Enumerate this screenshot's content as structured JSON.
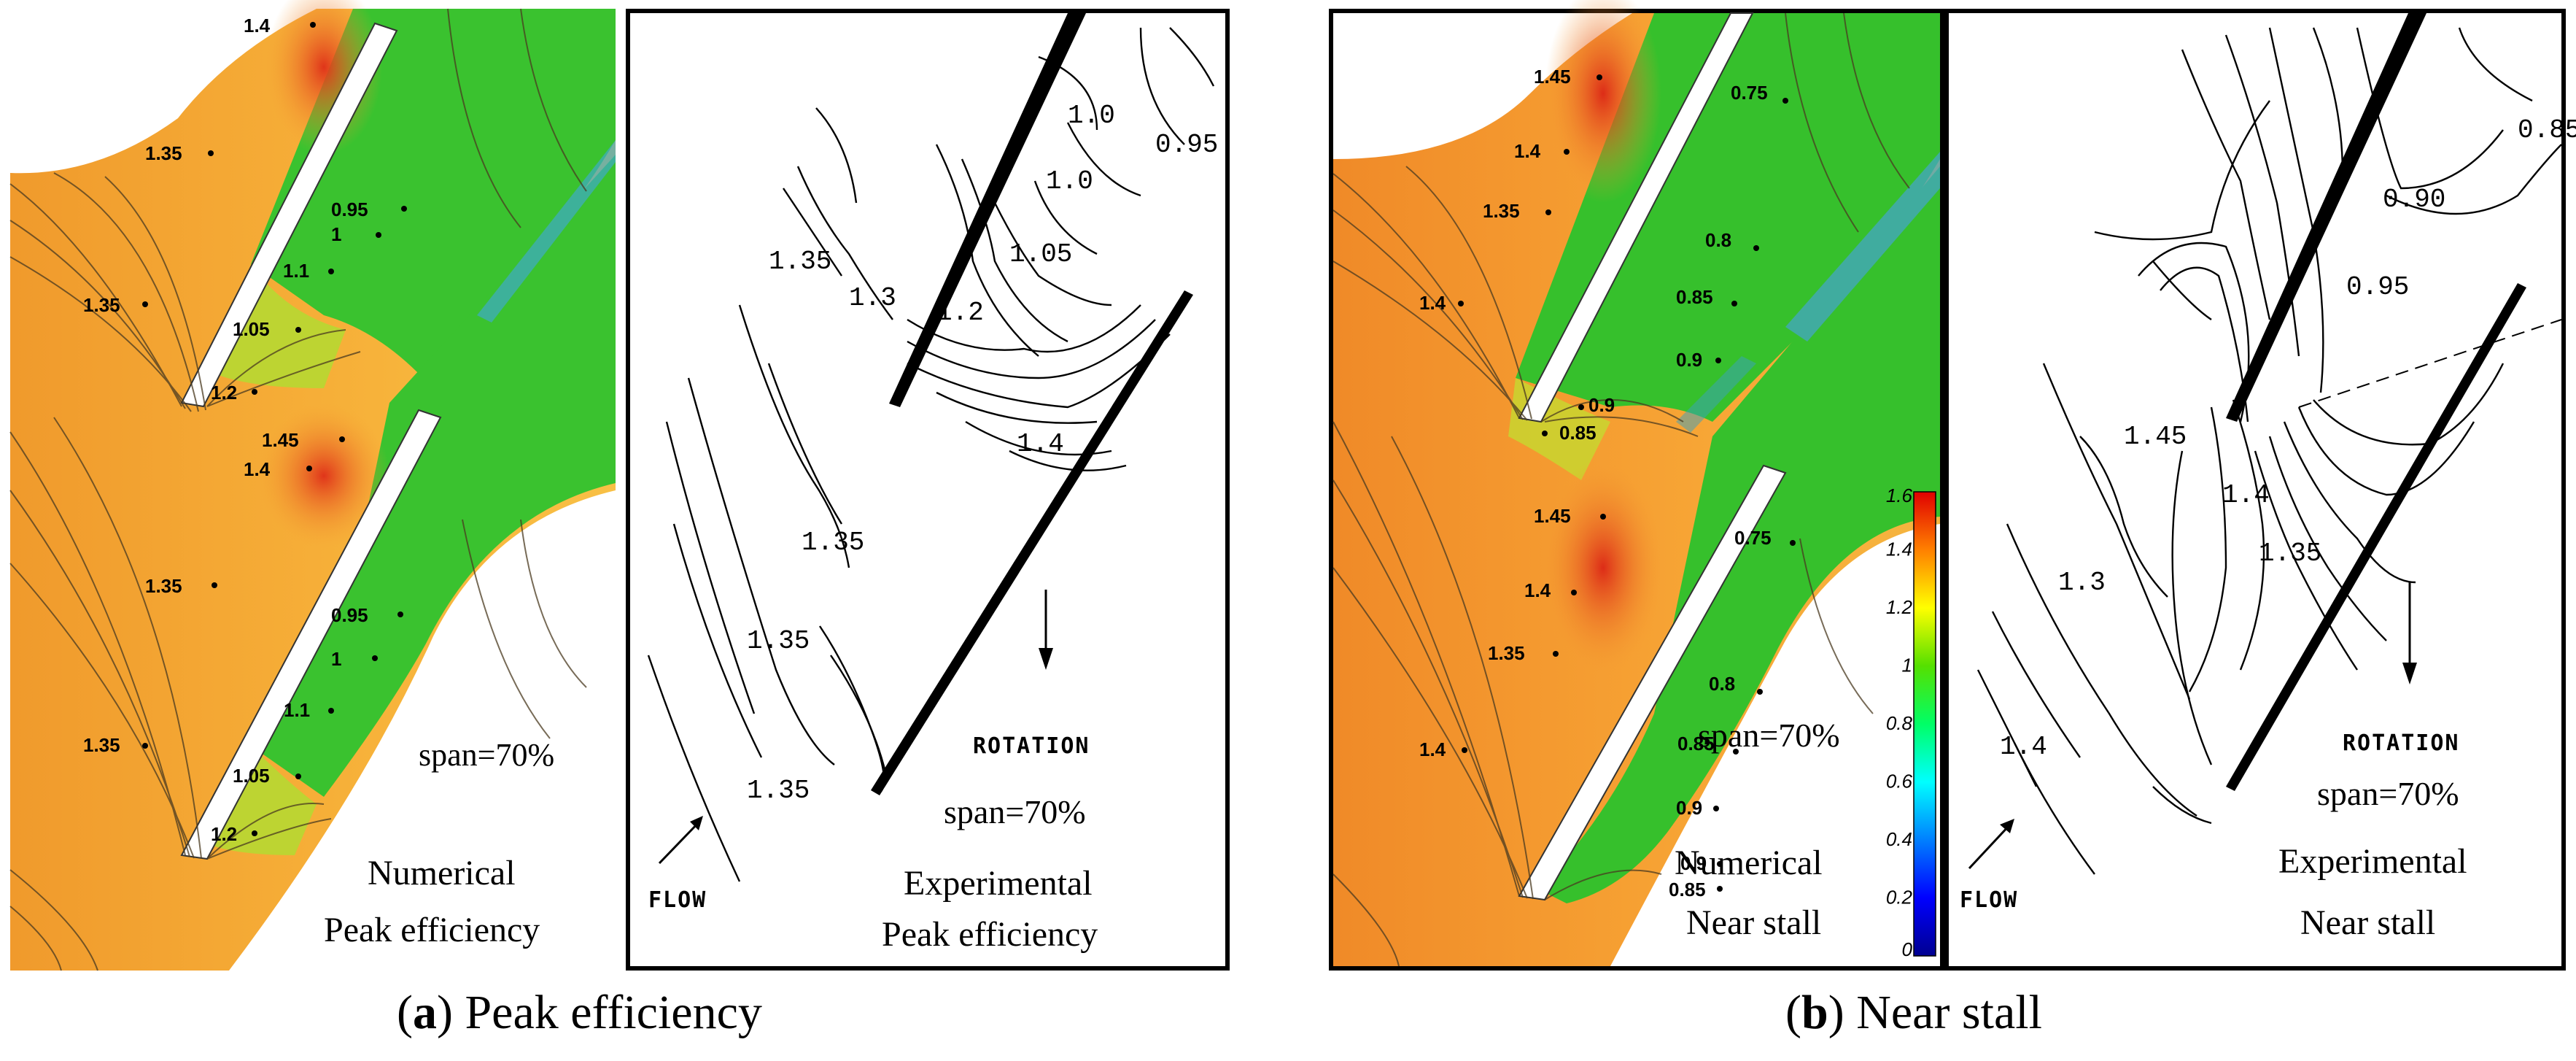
{
  "panel_a_numerical": {
    "span": "span=70%",
    "title_line1": "Numerical",
    "title_line2": "Peak efficiency",
    "contour_labels": [
      "1.4",
      "1.35",
      "0.95",
      "1",
      "1.1",
      "1.35",
      "1.05",
      "1.2",
      "1.45",
      "1.4",
      "1.35",
      "0.95",
      "1",
      "1.1",
      "1.35",
      "1.05",
      "1.2"
    ]
  },
  "panel_a_experimental": {
    "span": "span=70%",
    "title_line1": "Experimental",
    "title_line2": "Peak efficiency",
    "rotation": "ROTATION",
    "flow": "FLOW",
    "contour_labels": [
      "1.0",
      "0.95",
      "1.0",
      "1.35",
      "1.05",
      "1.3",
      "1.2",
      "1.4",
      "1.35",
      "1.35",
      "1.35"
    ]
  },
  "panel_b_numerical": {
    "span": "span=70%",
    "title_line1": "Numerical",
    "title_line2": "Near stall",
    "contour_labels": [
      "1.45",
      "0.75",
      "1.4",
      "1.35",
      "0.8",
      "1.4",
      "0.85",
      "0.9",
      "0.9",
      "0.85",
      "1.45",
      "0.75",
      "1.4",
      "1.35",
      "0.8",
      "0.85",
      "1.4",
      "0.9",
      "0.9",
      "0.85"
    ],
    "colorbar": {
      "min": 0,
      "max": 1.6,
      "ticks": [
        "1.6",
        "1.4",
        "1.2",
        "1",
        "0.8",
        "0.6",
        "0.4",
        "0.2",
        "0"
      ]
    }
  },
  "panel_b_experimental": {
    "span": "span=70%",
    "title_line1": "Experimental",
    "title_line2": "Near stall",
    "rotation": "ROTATION",
    "flow": "FLOW",
    "contour_labels": [
      "0.85",
      "0.90",
      "0.95",
      "1.45",
      "1.4",
      "1.35",
      "1.3",
      "1.4"
    ]
  },
  "captions": {
    "a_letter": "a",
    "a_text": " Peak efficiency",
    "b_letter": "b",
    "b_text": " Near stall"
  }
}
